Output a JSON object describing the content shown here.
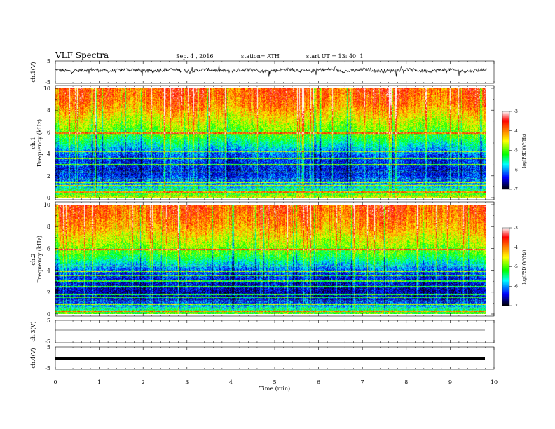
{
  "header": {
    "title": "VLF  Spectra",
    "date": "Sep. 4   , 2016",
    "station": "station= ATH",
    "start": "start  UT  =    13: 40: 1"
  },
  "colorbar": {
    "label": "log(PSD)(V²/Hz)",
    "ticks": [
      "-3",
      "-4",
      "-5",
      "-6",
      "-7"
    ],
    "colors": [
      "#ffffff",
      "#ff0000",
      "#ffff00",
      "#00ff00",
      "#00ffff",
      "#0000ff",
      "#000000"
    ]
  },
  "chart_data": [
    {
      "type": "line",
      "name": "ch1-waveform",
      "ylabel": "ch.1(V)",
      "yticks": [
        "5",
        "-5"
      ],
      "ylim": [
        -5,
        5
      ],
      "baseline": 0.8,
      "amplitude": 1.1
    },
    {
      "type": "heatmap",
      "name": "ch1-spectrogram",
      "ylabel_top": "ch.1",
      "ylabel": "Frequency  (kHz)",
      "yticks": [
        "0",
        "2",
        "4",
        "6",
        "8",
        "10"
      ],
      "ylim": [
        0,
        10
      ],
      "xlim": [
        0,
        9.83
      ],
      "zlim": [
        -7,
        -3
      ],
      "profile_khz": [
        0,
        0.5,
        1,
        1.5,
        2,
        2.5,
        3,
        3.5,
        4,
        4.5,
        5,
        5.5,
        6,
        6.5,
        7,
        7.5,
        8,
        8.5,
        9,
        9.5,
        10
      ],
      "profile_logpsd": [
        -4.6,
        -5.3,
        -5.8,
        -6.1,
        -6.3,
        -6.4,
        -6.3,
        -6.3,
        -6.1,
        -5.8,
        -5.5,
        -5.2,
        -5.0,
        -4.8,
        -4.6,
        -4.4,
        -4.2,
        -4.0,
        -3.9,
        -3.8,
        -3.8
      ]
    },
    {
      "type": "heatmap",
      "name": "ch2-spectrogram",
      "ylabel_top": "ch.2",
      "ylabel": "Frequency  (kHz)",
      "yticks": [
        "0",
        "2",
        "4",
        "6",
        "8",
        "10"
      ],
      "ylim": [
        0,
        10
      ],
      "xlim": [
        0,
        9.83
      ],
      "zlim": [
        -7,
        -3
      ],
      "profile_khz": [
        0,
        0.5,
        1,
        1.5,
        2,
        2.5,
        3,
        3.5,
        4,
        4.5,
        5,
        5.5,
        6,
        6.5,
        7,
        7.5,
        8,
        8.5,
        9,
        9.5,
        10
      ],
      "profile_logpsd": [
        -5.0,
        -5.6,
        -6.2,
        -6.5,
        -6.6,
        -6.5,
        -6.4,
        -6.3,
        -6.1,
        -5.8,
        -5.4,
        -5.1,
        -4.9,
        -4.7,
        -4.5,
        -4.3,
        -4.1,
        -4.0,
        -3.9,
        -3.8,
        -3.8
      ]
    },
    {
      "type": "line",
      "name": "ch3-waveform",
      "ylabel": "ch.3(V)",
      "yticks": [
        "5",
        "-5"
      ],
      "ylim": [
        -5,
        5
      ],
      "baseline": 0,
      "amplitude": 0
    },
    {
      "type": "line",
      "name": "ch4-waveform",
      "ylabel": "ch.4(V)",
      "yticks": [
        "5",
        "-5"
      ],
      "ylim": [
        -5,
        5
      ],
      "baseline": 0,
      "amplitude": 0
    }
  ],
  "xaxis": {
    "label": "Time  (min)",
    "ticks": [
      "0",
      "1",
      "2",
      "3",
      "4",
      "5",
      "6",
      "7",
      "8",
      "9",
      "10"
    ],
    "xlim": [
      0,
      10
    ]
  }
}
